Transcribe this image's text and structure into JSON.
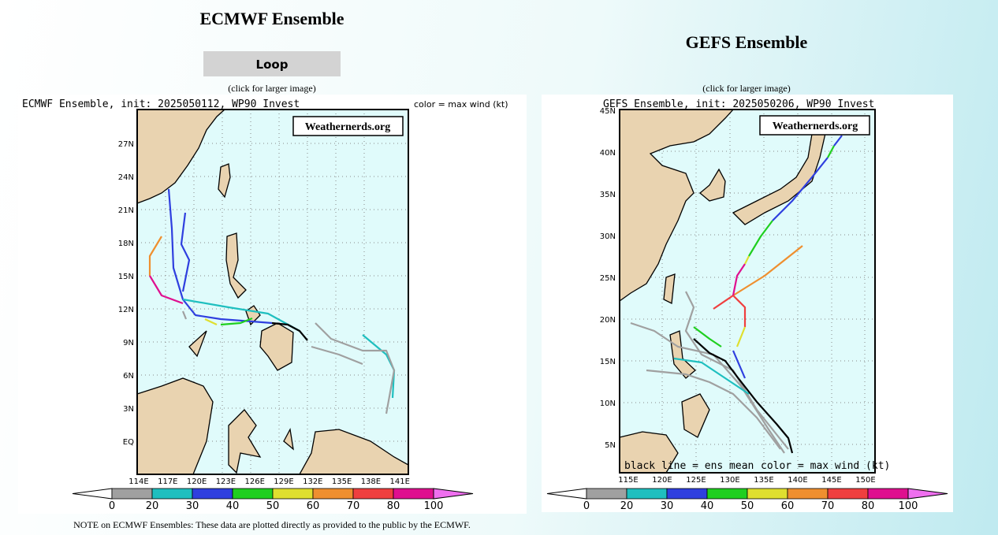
{
  "left": {
    "title": "ECMWF Ensemble",
    "button": "Loop",
    "caption": "(click for larger image)",
    "map": {
      "header": "ECMWF Ensemble, init: 2025050112, WP90 Invest",
      "legend_note": "color = max wind (kt)",
      "watermark": "Weathernerds.org",
      "lat_labels": [
        "27N",
        "24N",
        "21N",
        "18N",
        "15N",
        "12N",
        "9N",
        "6N",
        "3N",
        "EQ"
      ],
      "lon_labels": [
        "114E",
        "117E",
        "120E",
        "123E",
        "126E",
        "129E",
        "132E",
        "135E",
        "138E",
        "141E"
      ],
      "colorbar": [
        "0",
        "20",
        "30",
        "40",
        "50",
        "60",
        "70",
        "80",
        "100"
      ]
    }
  },
  "right": {
    "title": "GEFS Ensemble",
    "caption": "(click for larger image)",
    "map": {
      "header": "GEFS Ensemble, init: 2025050206, WP90 Invest",
      "watermark": "Weathernerds.org",
      "lat_labels": [
        "45N",
        "40N",
        "35N",
        "30N",
        "25N",
        "20N",
        "15N",
        "10N",
        "5N"
      ],
      "lon_labels": [
        "115E",
        "120E",
        "125E",
        "130E",
        "135E",
        "140E",
        "145E",
        "150E"
      ],
      "footer_left": "black line = ens mean",
      "footer_right": "color = max wind (kt)",
      "colorbar": [
        "0",
        "20",
        "30",
        "40",
        "50",
        "60",
        "70",
        "80",
        "100"
      ]
    }
  },
  "note": "NOTE on ECMWF Ensembles: These data are plotted directly as provided to the public by the ECMWF."
}
